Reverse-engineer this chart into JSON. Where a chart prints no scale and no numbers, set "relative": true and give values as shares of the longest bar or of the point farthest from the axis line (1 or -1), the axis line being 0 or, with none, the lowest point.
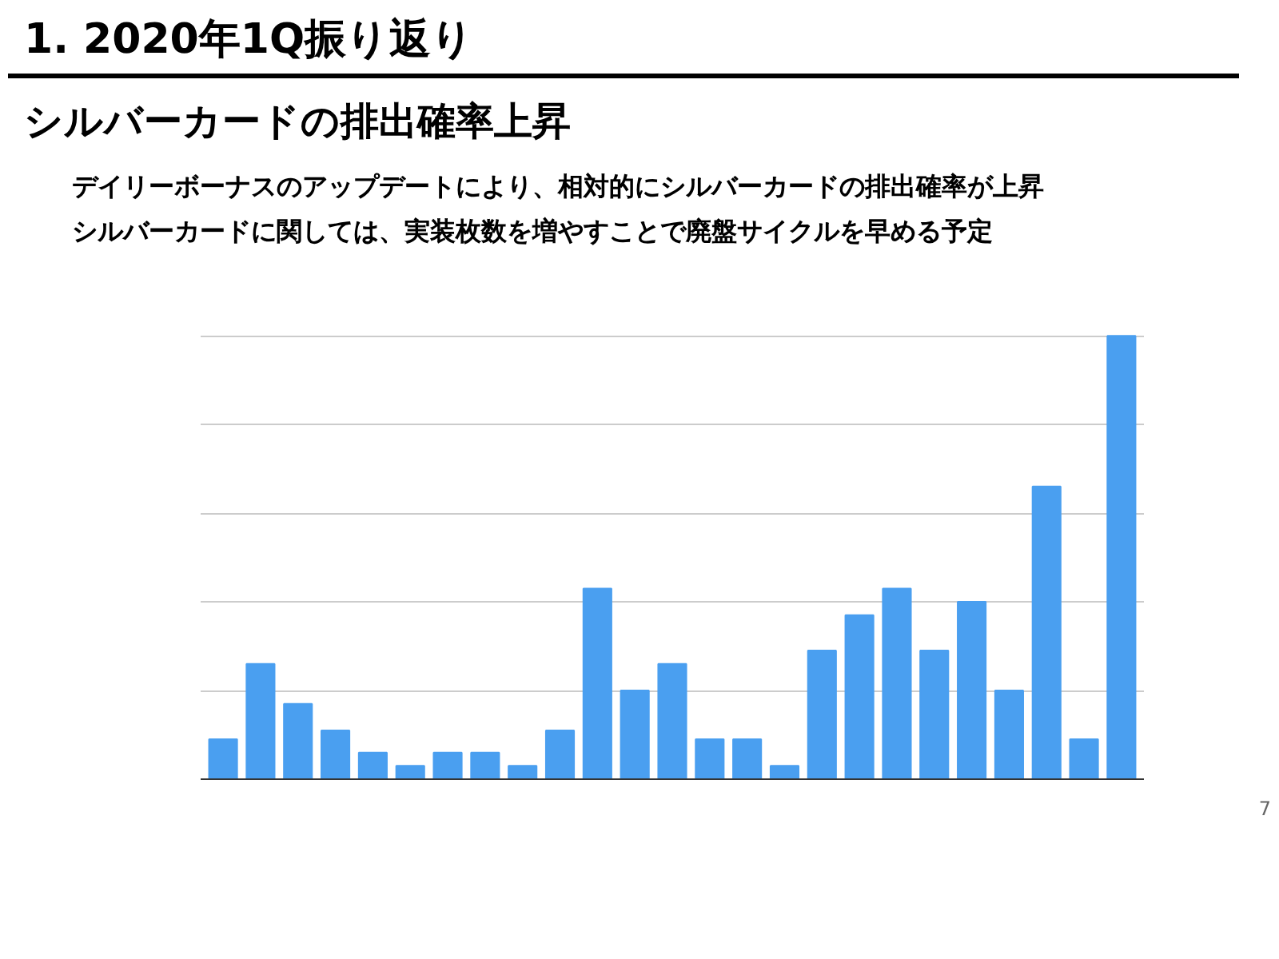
{
  "chart_data": {
    "type": "bar",
    "title": "1. 2020年1Q振り返り",
    "subtitle": "シルバーカードの排出確率上昇",
    "annotations": [
      "デイリーボーナスのアップデートにより、相対的にシルバーカードの排出確率が上昇",
      "シルバーカードに関しては、実装枚数を増やすことで廃盤サイクルを早める予定",
      "7"
    ],
    "categories": [
      null,
      null,
      null,
      null,
      null,
      null,
      null,
      null,
      null,
      null,
      null,
      null,
      null,
      null,
      null,
      null,
      null,
      null,
      null,
      null,
      null,
      null,
      null,
      null,
      null
    ],
    "values": [
      0.09,
      0.26,
      0.17,
      0.11,
      0.06,
      0.03,
      0.06,
      0.06,
      0.03,
      0.11,
      0.43,
      0.2,
      0.26,
      0.09,
      0.09,
      0.03,
      0.29,
      0.37,
      0.43,
      0.29,
      0.4,
      0.2,
      0.66,
      0.09,
      1
    ],
    "color": "#4a9ff0",
    "relative": true,
    "grid": "y"
  }
}
